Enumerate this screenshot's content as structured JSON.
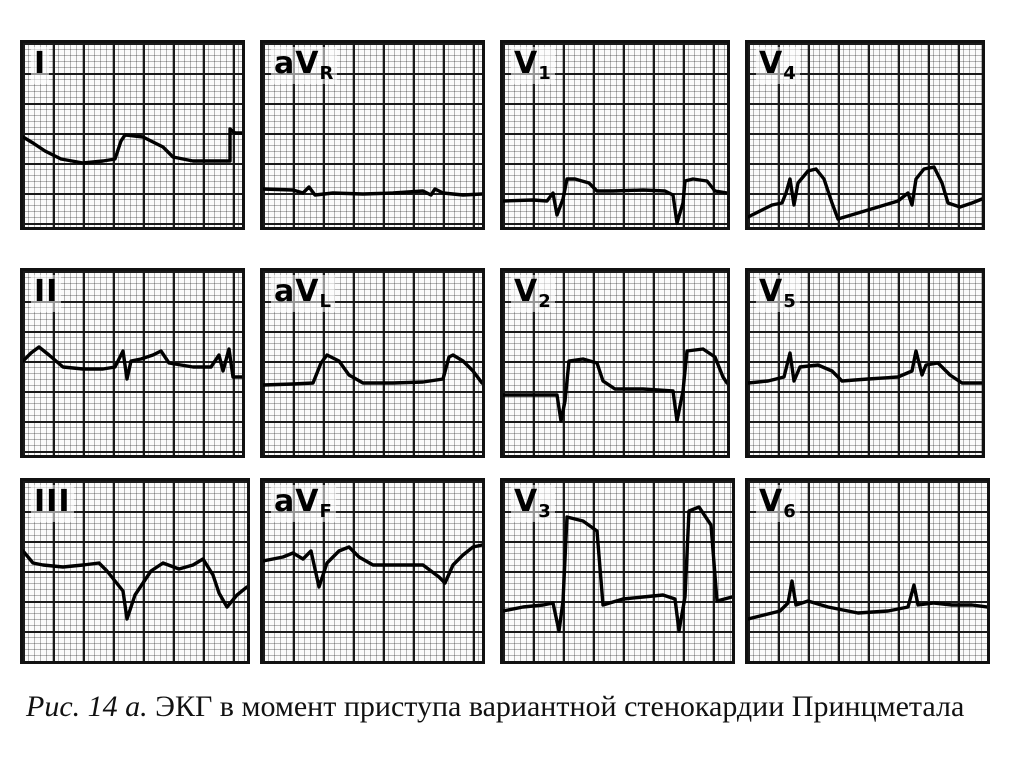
{
  "leads": [
    {
      "id": "I",
      "main": "I",
      "sub": ""
    },
    {
      "id": "aVR",
      "main": "aV",
      "sub": "R"
    },
    {
      "id": "V1",
      "main": "V",
      "sub": "1"
    },
    {
      "id": "V4",
      "main": "V",
      "sub": "4"
    },
    {
      "id": "II",
      "main": "II",
      "sub": ""
    },
    {
      "id": "aVL",
      "main": "aV",
      "sub": "L"
    },
    {
      "id": "V2",
      "main": "V",
      "sub": "2"
    },
    {
      "id": "V5",
      "main": "V",
      "sub": "5"
    },
    {
      "id": "III",
      "main": "III",
      "sub": ""
    },
    {
      "id": "aVF",
      "main": "aV",
      "sub": "F"
    },
    {
      "id": "V3",
      "main": "V",
      "sub": "3"
    },
    {
      "id": "V6",
      "main": "V",
      "sub": "6"
    }
  ],
  "caption": {
    "figure": "Рис. 14 а.",
    "text": "ЭКГ в момент приступа вариантной стенокардии Принцметала"
  },
  "colors": {
    "ink": "#000000",
    "grid": "#1a1a1a",
    "paper": "#fbfbfb"
  }
}
